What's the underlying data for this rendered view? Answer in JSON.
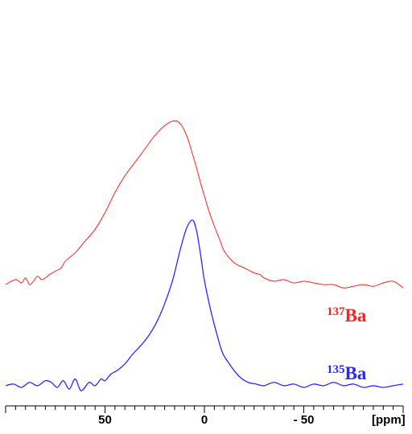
{
  "chart_data": {
    "type": "line",
    "xlabel": "[ppm]",
    "x_reversed": true,
    "xlim": [
      100,
      -100
    ],
    "x_ticks": [
      {
        "value": 50,
        "label": "50"
      },
      {
        "value": 0,
        "label": "0"
      },
      {
        "value": -50,
        "label": "- 50"
      }
    ],
    "grid": false,
    "series": [
      {
        "name": "137Ba",
        "label_sup": "137",
        "label_main": "Ba",
        "color": "#ff2020",
        "x": [
          100,
          95,
          92,
          90,
          88,
          86,
          84,
          82,
          80,
          78,
          75,
          72,
          70,
          65,
          60,
          55,
          50,
          45,
          40,
          35,
          30,
          25,
          20,
          15,
          12,
          10,
          8,
          6,
          4,
          2,
          0,
          -2,
          -5,
          -8,
          -10,
          -15,
          -20,
          -25,
          -28,
          -30,
          -35,
          -40,
          -45,
          -50,
          -55,
          -60,
          -65,
          -70,
          -75,
          -80,
          -85,
          -90,
          -95,
          -100
        ],
        "y": [
          0.02,
          0.05,
          0.03,
          0.06,
          0.02,
          0.04,
          0.07,
          0.05,
          0.06,
          0.08,
          0.1,
          0.12,
          0.16,
          0.21,
          0.28,
          0.35,
          0.45,
          0.57,
          0.67,
          0.75,
          0.83,
          0.91,
          0.97,
          1.0,
          0.98,
          0.94,
          0.88,
          0.8,
          0.72,
          0.63,
          0.55,
          0.47,
          0.37,
          0.28,
          0.22,
          0.15,
          0.12,
          0.09,
          0.08,
          0.06,
          0.04,
          0.05,
          0.03,
          0.04,
          0.03,
          0.02,
          0.02,
          0.0,
          0.01,
          0.02,
          0.01,
          0.03,
          0.04,
          0.0
        ],
        "offset": 0.33,
        "scale": 0.555
      },
      {
        "name": "135Ba",
        "label_sup": "135",
        "label_main": "Ba",
        "color": "#2828ff",
        "x": [
          100,
          96,
          92,
          88,
          84,
          80,
          77,
          74,
          71,
          68,
          65,
          62,
          58,
          55,
          52,
          50,
          47,
          44,
          40,
          36,
          32,
          28,
          24,
          20,
          16,
          12,
          9,
          6,
          4,
          2,
          0,
          -3,
          -6,
          -9,
          -12,
          -15,
          -18,
          -22,
          -26,
          -30,
          -35,
          -40,
          -45,
          -50,
          -55,
          -60,
          -65,
          -70,
          -75,
          -80,
          -85,
          -90,
          -95,
          -100
        ],
        "y": [
          0.01,
          0.02,
          0.0,
          0.03,
          0.01,
          0.04,
          0.03,
          0.0,
          0.04,
          -0.01,
          0.05,
          -0.02,
          0.03,
          0.01,
          0.05,
          0.04,
          0.08,
          0.1,
          0.14,
          0.2,
          0.25,
          0.31,
          0.39,
          0.5,
          0.64,
          0.83,
          0.95,
          1.0,
          0.94,
          0.8,
          0.64,
          0.47,
          0.33,
          0.21,
          0.15,
          0.1,
          0.06,
          0.03,
          0.02,
          0.01,
          0.03,
          0.01,
          0.02,
          0.0,
          0.02,
          0.01,
          0.03,
          0.01,
          0.02,
          0.0,
          0.01,
          0.0,
          0.01,
          0.02
        ],
        "offset": 0.0,
        "scale": 0.555
      }
    ]
  }
}
